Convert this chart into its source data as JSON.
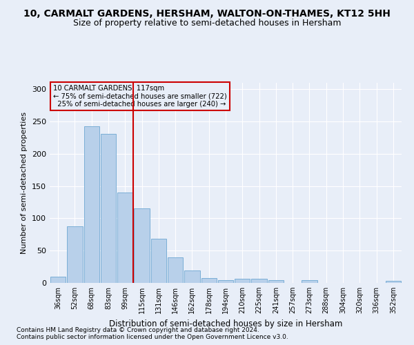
{
  "title": "10, CARMALT GARDENS, HERSHAM, WALTON-ON-THAMES, KT12 5HH",
  "subtitle": "Size of property relative to semi-detached houses in Hersham",
  "xlabel": "Distribution of semi-detached houses by size in Hersham",
  "ylabel": "Number of semi-detached properties",
  "categories": [
    "36sqm",
    "52sqm",
    "68sqm",
    "83sqm",
    "99sqm",
    "115sqm",
    "131sqm",
    "146sqm",
    "162sqm",
    "178sqm",
    "194sqm",
    "210sqm",
    "225sqm",
    "241sqm",
    "257sqm",
    "273sqm",
    "288sqm",
    "304sqm",
    "320sqm",
    "336sqm",
    "352sqm"
  ],
  "values": [
    10,
    88,
    243,
    231,
    140,
    115,
    68,
    40,
    19,
    8,
    4,
    6,
    6,
    4,
    0,
    4,
    0,
    0,
    0,
    0,
    3
  ],
  "bar_color": "#b8d0ea",
  "bar_edge_color": "#7aaed6",
  "property_label": "10 CARMALT GARDENS: 117sqm",
  "smaller_pct": "75% of semi-detached houses are smaller (722)",
  "larger_pct": "25% of semi-detached houses are larger (240)",
  "vline_position": 5.0,
  "ylim": [
    0,
    310
  ],
  "annotation_box_color": "#cc0000",
  "footer1": "Contains HM Land Registry data © Crown copyright and database right 2024.",
  "footer2": "Contains public sector information licensed under the Open Government Licence v3.0.",
  "bg_color": "#e8eef8",
  "grid_color": "#ffffff",
  "title_fontsize": 10,
  "subtitle_fontsize": 9
}
